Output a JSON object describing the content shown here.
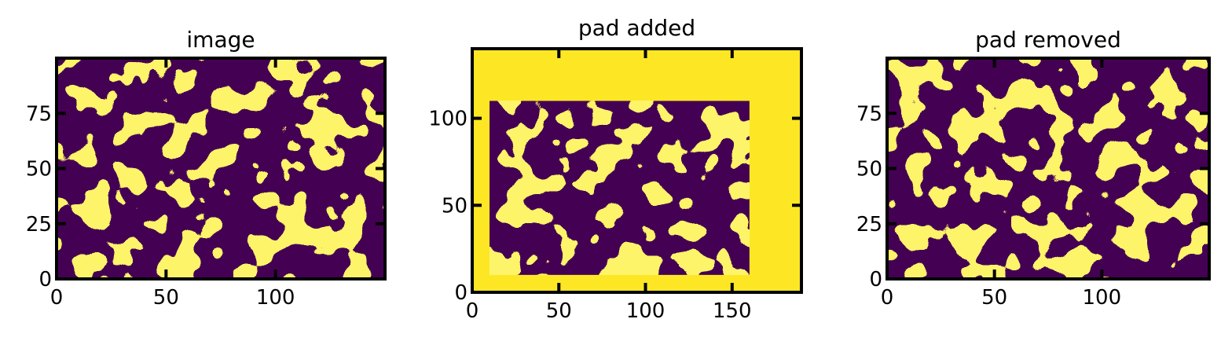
{
  "colors": {
    "background": "#440154",
    "foreground": "#fde725",
    "frame": "#000000"
  },
  "chart_data": [
    {
      "type": "heatmap",
      "title": "image",
      "xlim": [
        0,
        150
      ],
      "ylim": [
        0,
        100
      ],
      "xticks": [
        0,
        50,
        100
      ],
      "yticks": [
        0,
        25,
        50,
        75
      ],
      "xtick_labels": [
        "0",
        "50",
        "100"
      ],
      "ytick_labels": [
        "0",
        "25",
        "50",
        "75"
      ],
      "content_region": {
        "x": [
          0,
          150
        ],
        "y": [
          0,
          100
        ]
      },
      "pad_fill": null
    },
    {
      "type": "heatmap",
      "title": "pad added",
      "xlim": [
        0,
        190
      ],
      "ylim": [
        0,
        140
      ],
      "xticks": [
        0,
        50,
        100,
        150
      ],
      "yticks": [
        0,
        50,
        100
      ],
      "xtick_labels": [
        "0",
        "50",
        "100",
        "150"
      ],
      "ytick_labels": [
        "0",
        "50",
        "100"
      ],
      "content_region": {
        "x": [
          10,
          160
        ],
        "y": [
          10,
          110
        ]
      },
      "pad_fill": "foreground"
    },
    {
      "type": "heatmap",
      "title": "pad removed",
      "xlim": [
        0,
        150
      ],
      "ylim": [
        0,
        100
      ],
      "xticks": [
        0,
        50,
        100
      ],
      "yticks": [
        0,
        25,
        50,
        75
      ],
      "xtick_labels": [
        "0",
        "50",
        "100"
      ],
      "ytick_labels": [
        "0",
        "25",
        "50",
        "75"
      ],
      "content_region": {
        "x": [
          0,
          150
        ],
        "y": [
          0,
          100
        ]
      },
      "pad_fill": null
    }
  ]
}
